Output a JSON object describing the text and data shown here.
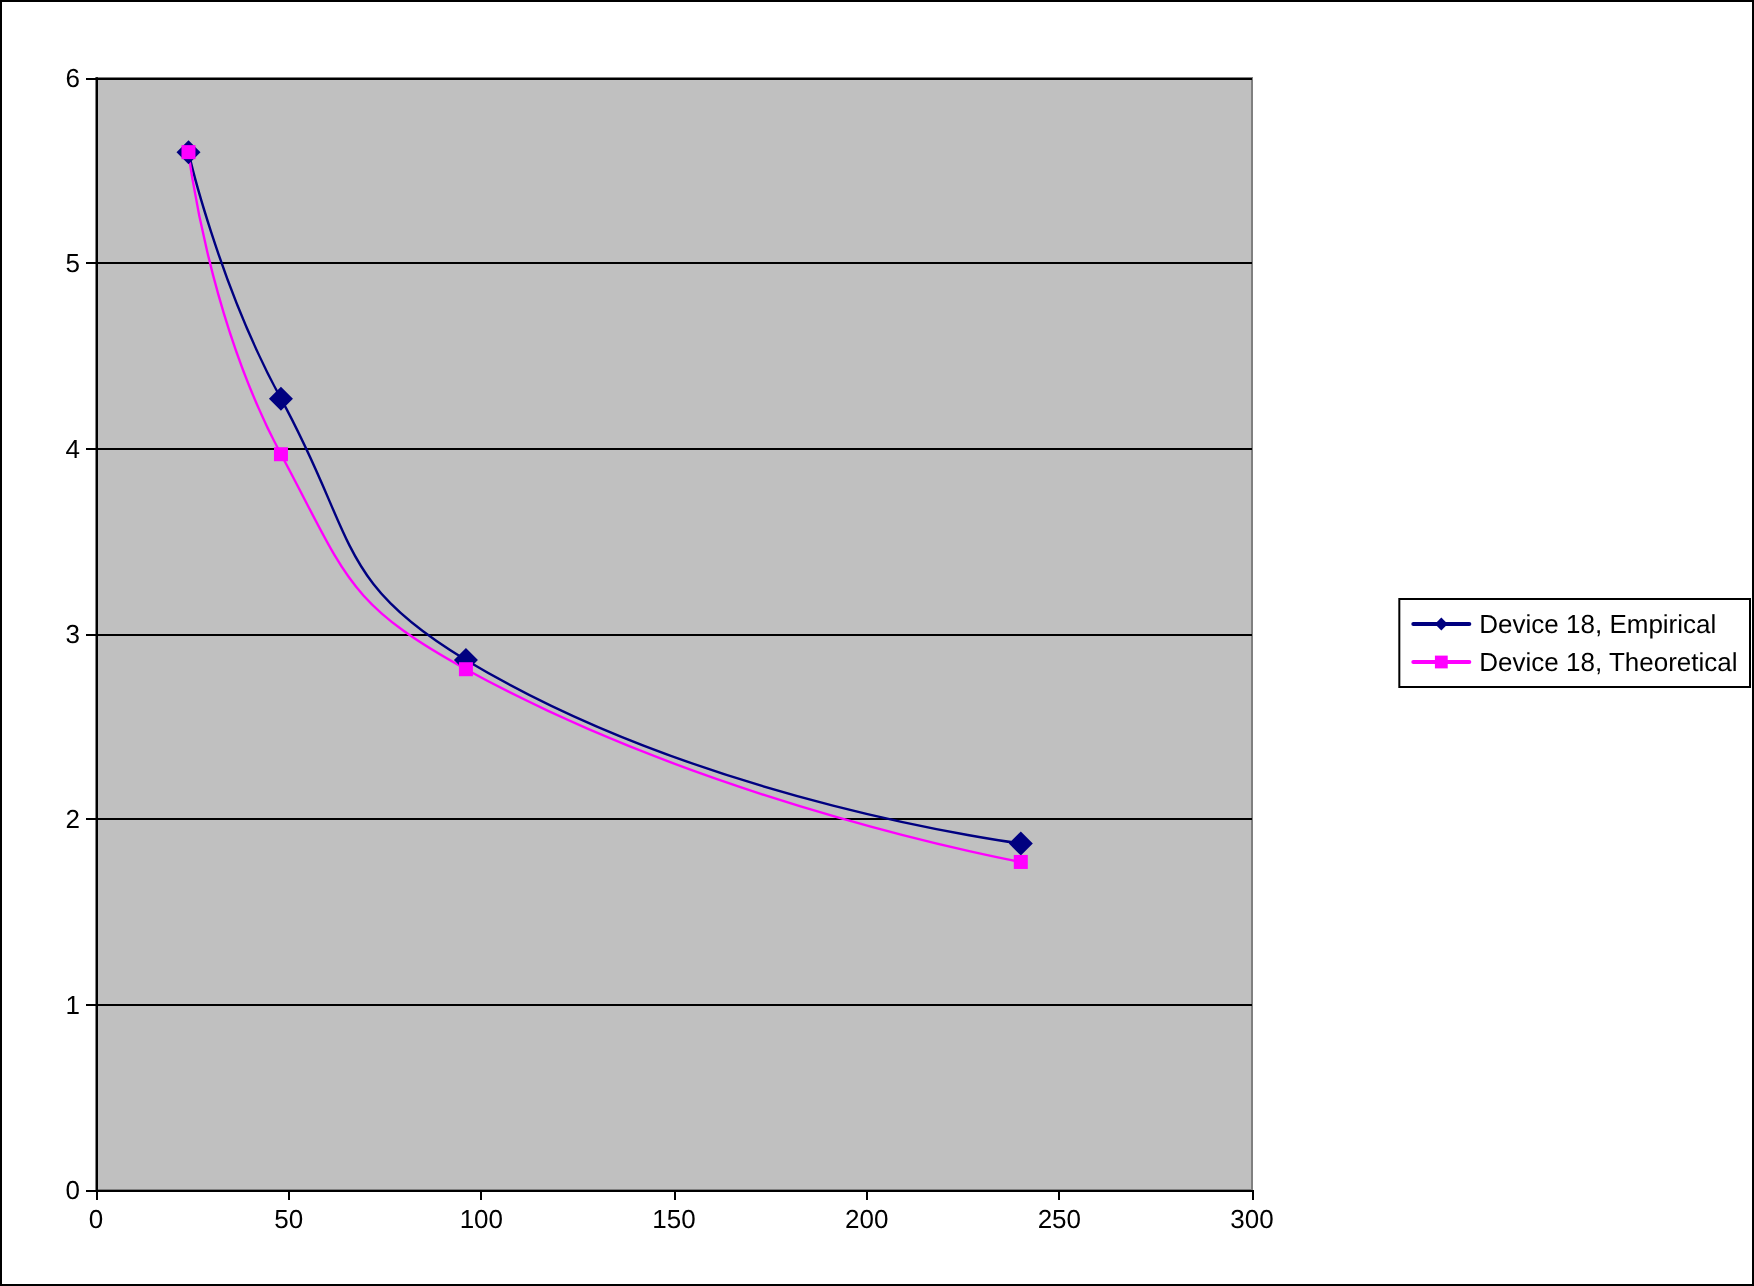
{
  "chart_data": {
    "type": "line",
    "x": [
      24,
      48,
      96,
      240
    ],
    "series": [
      {
        "name": "Device 18, Empirical",
        "color": "#000080",
        "values": [
          5.6,
          4.27,
          2.86,
          1.87
        ],
        "marker": "diamond"
      },
      {
        "name": "Device 18, Theoretical",
        "color": "#ff00ff",
        "values": [
          5.6,
          3.97,
          2.81,
          1.77
        ],
        "marker": "square"
      }
    ],
    "xlim": [
      0,
      300
    ],
    "xticks": [
      0,
      50,
      100,
      150,
      200,
      250,
      300
    ],
    "ylim": [
      0,
      6
    ],
    "yticks": [
      0,
      1,
      2,
      3,
      4,
      5,
      6
    ],
    "grid": "y",
    "legend": "right",
    "line_style": "solid"
  }
}
